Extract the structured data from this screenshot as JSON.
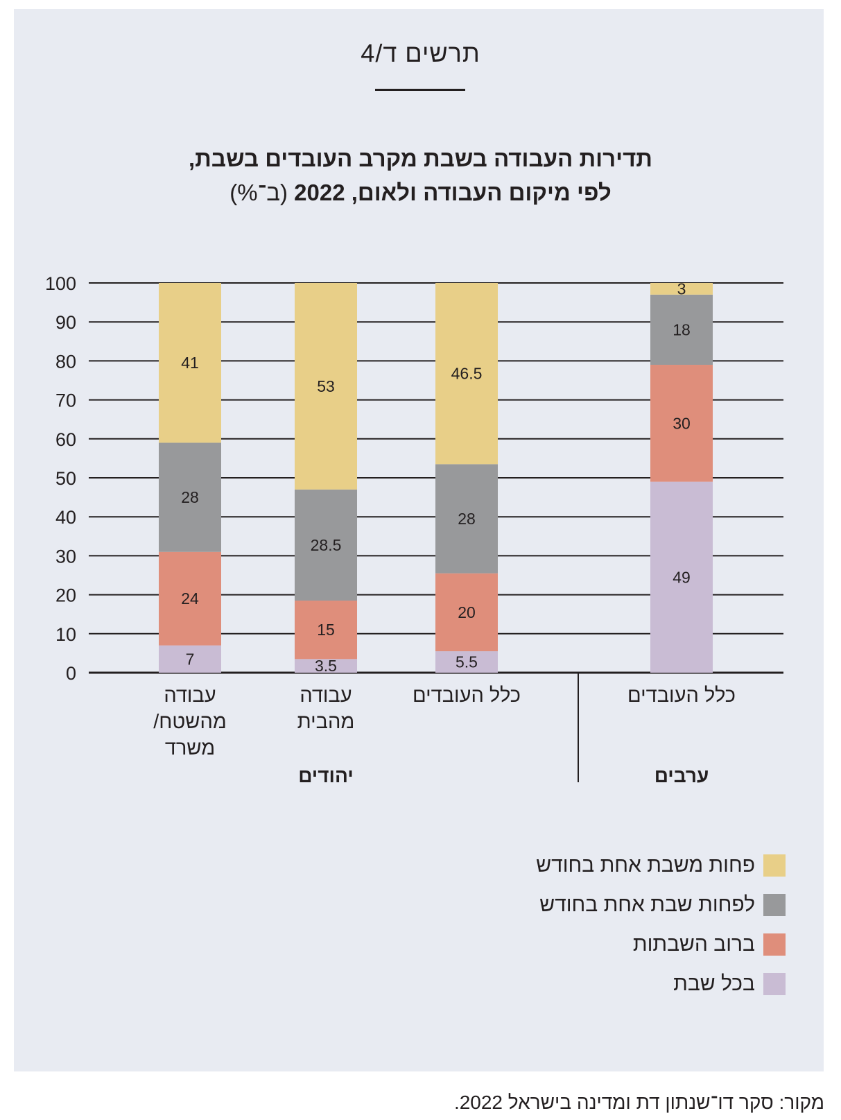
{
  "figure_number": "תרשים ד/4",
  "title_line1": "תדירות העבודה בשבת מקרב העובדים בשבת,",
  "title_line2_bold": "לפי מיקום העבודה ולאום, 2022",
  "title_line2_unit": "(ב־%)",
  "source": "מקור: סקר דו־שנתון דת ומדינה בישראל 2022.",
  "colors": {
    "every_shabbat": "#c9bcd4",
    "most_shabbatot": "#df8e7b",
    "at_least_once_month": "#98999b",
    "less_than_once_month": "#e8cf88"
  },
  "chart_data": {
    "type": "bar",
    "stacked": true,
    "ylim": [
      0,
      100
    ],
    "yticks": [
      "0",
      "10",
      "20",
      "30",
      "40",
      "50",
      "60",
      "70",
      "80",
      "90",
      "100"
    ],
    "grid": true,
    "categories": [
      "עבודה מהשטח/ משרד",
      "עבודה מהבית",
      "כלל העובדים",
      "כלל העובדים"
    ],
    "category_lines": [
      [
        "עבודה",
        "מהשטח/",
        "משרד"
      ],
      [
        "עבודה",
        "מהבית"
      ],
      [
        "כלל העובדים"
      ],
      [
        "כלל העובדים"
      ]
    ],
    "groups": [
      {
        "label": "יהודים",
        "categories": [
          0,
          1,
          2
        ]
      },
      {
        "label": "ערבים",
        "categories": [
          3
        ]
      }
    ],
    "series": [
      {
        "name": "בכל שבת",
        "values": [
          7,
          3.5,
          5.5,
          49
        ],
        "labels": [
          "7",
          "3.5",
          "5.5",
          "49"
        ]
      },
      {
        "name": "ברוב השבתות",
        "values": [
          24,
          15,
          20,
          30
        ],
        "labels": [
          "24",
          "15",
          "20",
          "30"
        ]
      },
      {
        "name": "לפחות שבת אחת בחודש",
        "values": [
          28,
          28.5,
          28,
          18
        ],
        "labels": [
          "28",
          "28.5",
          "28",
          "18"
        ]
      },
      {
        "name": "פחות משבת אחת בחודש",
        "values": [
          41,
          53,
          46.5,
          3
        ],
        "labels": [
          "41",
          "53",
          "46.5",
          "3"
        ]
      }
    ],
    "legend": {
      "placement": "bottom-right",
      "order": [
        "פחות משבת אחת בחודש",
        "לפחות שבת אחת בחודש",
        "ברוב השבתות",
        "בכל שבת"
      ]
    }
  }
}
